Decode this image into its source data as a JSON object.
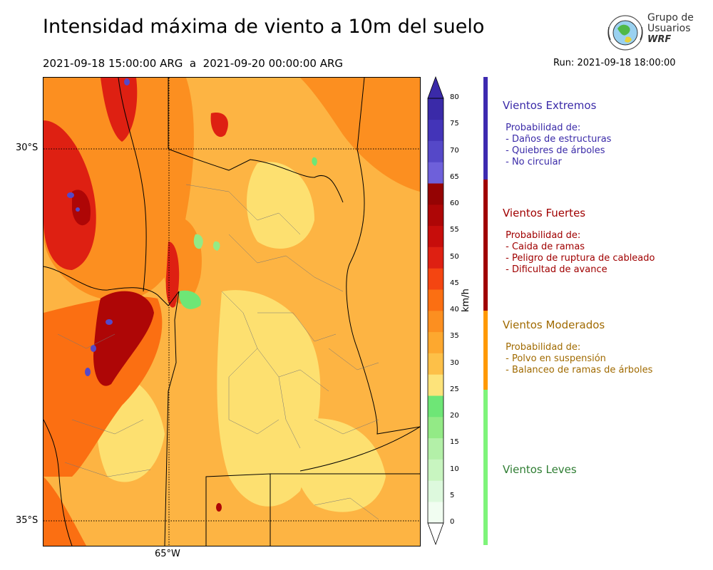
{
  "title": "Intensidad máxima de viento a 10m del suelo",
  "subtitle": "2021-09-18 15:00:00 ARG  a  2021-09-20 00:00:00 ARG",
  "run": "Run: 2021-09-18 18:00:00",
  "logo": {
    "line1": "Grupo de",
    "line2": "Usuarios",
    "line3": "WRF"
  },
  "map": {
    "lat_labels": [
      "30°S",
      "35°S"
    ],
    "lon_labels": [
      "65°W"
    ],
    "gridline_style": "dotted"
  },
  "colorbar": {
    "unit": "km/h",
    "ticks": [
      "80",
      "75",
      "70",
      "65",
      "60",
      "55",
      "50",
      "45",
      "40",
      "35",
      "30",
      "25",
      "20",
      "15",
      "10",
      "5",
      "0"
    ],
    "colors": [
      "#f1fdf1",
      "#ddf9dd",
      "#c8f5c0",
      "#b3f0a8",
      "#93ea86",
      "#6ee676",
      "#fde37a",
      "#fdc048",
      "#fda82f",
      "#fc8f20",
      "#fb6f12",
      "#f44511",
      "#de2012",
      "#c70d0b",
      "#ae0606",
      "#950303",
      "#6e60da",
      "#5548c8",
      "#4334b8",
      "#3a2aa8"
    ]
  },
  "legend": [
    {
      "title": "Vientos Extremos",
      "color": "#3a2aa8",
      "body": " Probabilidad de:\n - Daños de estructuras\n - Quiebres de árboles\n - No circular"
    },
    {
      "title": "Vientos Fuertes",
      "color": "#a00000",
      "body": " Probabilidad de:\n - Caida de ramas\n - Peligro de ruptura de cableado\n - Dificultad de avance"
    },
    {
      "title": "Vientos Moderados",
      "color": "#a06a00",
      "body": " Probabilidad de:\n - Polvo en suspensión\n - Balanceo de ramas de árboles"
    },
    {
      "title": "Vientos Leves",
      "color": "#2e7d32",
      "body": ""
    }
  ],
  "legend_bar_colors": [
    "#3d2ab0",
    "#a00000",
    "#ff9900",
    "#7ef47a"
  ]
}
